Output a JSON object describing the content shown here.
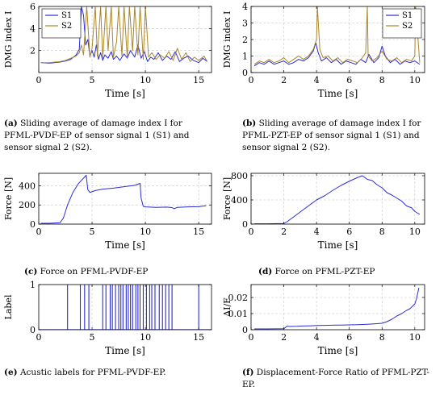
{
  "chart_data": [
    {
      "id": "a",
      "type": "line",
      "ylabel": "DMG index I",
      "xlabel": "Time [s]",
      "xlim": [
        0,
        16.2
      ],
      "ylim": [
        0,
        6
      ],
      "xticks": [
        0,
        5,
        10,
        15
      ],
      "yticks": [
        2,
        4,
        6
      ],
      "grid": true,
      "legend": "top-left",
      "series": [
        {
          "name": "S1",
          "color": "#2b2bd9",
          "x": [
            0.2,
            1.0,
            2.0,
            2.5,
            3.0,
            3.5,
            3.8,
            4.0,
            4.2,
            4.4,
            4.6,
            4.8,
            5.0,
            5.2,
            5.4,
            5.6,
            5.8,
            6.0,
            6.2,
            6.5,
            6.8,
            7.0,
            7.3,
            7.6,
            8.0,
            8.3,
            8.6,
            9.0,
            9.3,
            9.6,
            9.9,
            10.2,
            10.5,
            10.8,
            11.2,
            11.6,
            12.0,
            12.4,
            12.8,
            13.2,
            13.6,
            14.0,
            14.5,
            15.0,
            15.4,
            15.8
          ],
          "y": [
            0.9,
            0.85,
            0.95,
            1.05,
            1.2,
            1.6,
            2.1,
            6,
            5.2,
            2.5,
            3.0,
            1.5,
            2.0,
            1.4,
            2.5,
            1.2,
            1.8,
            1.1,
            1.6,
            1.3,
            1.9,
            1.2,
            1.5,
            1.1,
            1.7,
            1.3,
            2.0,
            1.4,
            2.5,
            1.3,
            1.9,
            1.0,
            1.4,
            1.2,
            1.8,
            1.1,
            1.5,
            1.2,
            1.9,
            1.0,
            1.3,
            1.5,
            1.1,
            0.9,
            1.3,
            1.0
          ]
        },
        {
          "name": "S2",
          "color": "#a8862b",
          "x": [
            0.2,
            1.0,
            2.0,
            2.5,
            3.0,
            3.5,
            3.8,
            4.0,
            4.2,
            4.5,
            4.8,
            5.0,
            5.3,
            5.5,
            5.8,
            6.0,
            6.3,
            6.5,
            6.8,
            7.0,
            7.3,
            7.5,
            7.8,
            8.0,
            8.3,
            8.5,
            8.8,
            9.0,
            9.3,
            9.5,
            9.8,
            10.0,
            10.3,
            10.6,
            11.0,
            11.4,
            11.8,
            12.2,
            12.6,
            13.0,
            13.4,
            13.8,
            14.2,
            14.6,
            15.0,
            15.5,
            15.8
          ],
          "y": [
            0.9,
            0.9,
            1.0,
            1.1,
            1.3,
            1.5,
            1.8,
            2.5,
            1.6,
            6,
            1.4,
            2.2,
            6,
            1.5,
            6,
            1.3,
            6,
            2.0,
            6,
            1.4,
            2.8,
            6,
            1.5,
            6,
            1.3,
            6,
            2.0,
            6,
            1.6,
            6,
            1.2,
            6,
            1.4,
            1.8,
            1.2,
            1.6,
            1.3,
            1.9,
            1.1,
            2.2,
            1.2,
            1.8,
            1.0,
            1.4,
            1.1,
            1.5,
            1.0
          ]
        }
      ]
    },
    {
      "id": "b",
      "type": "line",
      "ylabel": "DMG index I",
      "xlabel": "Time [s]",
      "xlim": [
        0,
        10.6
      ],
      "ylim": [
        0,
        4
      ],
      "xticks": [
        0,
        2,
        4,
        6,
        8,
        10
      ],
      "yticks": [
        0,
        1,
        2,
        3,
        4
      ],
      "grid": true,
      "legend": "top-right",
      "series": [
        {
          "name": "S1",
          "color": "#2b2bd9",
          "x": [
            0.2,
            0.5,
            0.8,
            1.1,
            1.4,
            1.7,
            2.0,
            2.3,
            2.6,
            2.9,
            3.2,
            3.5,
            3.8,
            3.95,
            4.1,
            4.3,
            4.6,
            4.9,
            5.2,
            5.5,
            5.8,
            6.1,
            6.4,
            6.7,
            7.0,
            7.2,
            7.5,
            7.8,
            8.0,
            8.2,
            8.5,
            8.8,
            9.1,
            9.4,
            9.7,
            10.0,
            10.3
          ],
          "y": [
            0.4,
            0.6,
            0.5,
            0.7,
            0.5,
            0.6,
            0.7,
            0.5,
            0.6,
            0.8,
            0.7,
            0.9,
            1.3,
            1.8,
            1.2,
            0.7,
            0.9,
            0.6,
            0.8,
            0.5,
            0.7,
            0.6,
            0.5,
            0.8,
            0.6,
            1.1,
            0.6,
            0.9,
            1.6,
            1.0,
            0.6,
            0.8,
            0.5,
            0.7,
            0.6,
            0.7,
            0.5
          ]
        },
        {
          "name": "S2",
          "color": "#a8862b",
          "x": [
            0.2,
            0.5,
            0.8,
            1.1,
            1.4,
            1.7,
            2.0,
            2.3,
            2.6,
            2.9,
            3.2,
            3.5,
            3.8,
            4.0,
            4.05,
            4.2,
            4.4,
            4.7,
            5.0,
            5.3,
            5.6,
            5.9,
            6.2,
            6.5,
            6.8,
            7.0,
            7.1,
            7.15,
            7.4,
            7.7,
            8.0,
            8.3,
            8.6,
            8.9,
            9.2,
            9.5,
            9.8,
            10.0,
            10.05,
            10.3
          ],
          "y": [
            0.5,
            0.7,
            0.6,
            0.8,
            0.6,
            0.7,
            0.9,
            0.6,
            0.8,
            1.0,
            0.8,
            1.0,
            1.4,
            2.0,
            4,
            1.4,
            0.9,
            1.0,
            0.7,
            0.9,
            0.6,
            0.8,
            0.7,
            0.6,
            0.9,
            1.2,
            4,
            1.0,
            0.7,
            0.9,
            1.3,
            0.8,
            0.7,
            0.9,
            0.6,
            0.8,
            0.7,
            1.0,
            4,
            0.6
          ]
        }
      ]
    },
    {
      "id": "c",
      "type": "line",
      "ylabel": "Force [N]",
      "xlabel": "Time [s]",
      "xlim": [
        0,
        16.2
      ],
      "ylim": [
        0,
        530
      ],
      "xticks": [
        0,
        5,
        10,
        15
      ],
      "yticks": [
        0,
        200,
        400
      ],
      "grid": true,
      "series": [
        {
          "name": "",
          "color": "#2b2bd9",
          "x": [
            0.2,
            1.0,
            2.0,
            2.3,
            2.7,
            3.2,
            3.7,
            4.2,
            4.45,
            4.6,
            4.8,
            5.3,
            6.0,
            7.0,
            8.0,
            9.0,
            9.5,
            9.6,
            9.8,
            10.0,
            11.0,
            12.0,
            12.5,
            12.7,
            13.0,
            14.0,
            15.0,
            15.7
          ],
          "y": [
            8,
            8,
            15,
            60,
            200,
            330,
            420,
            480,
            510,
            360,
            330,
            350,
            365,
            375,
            390,
            405,
            425,
            270,
            185,
            180,
            175,
            178,
            172,
            160,
            175,
            180,
            182,
            192
          ]
        }
      ]
    },
    {
      "id": "d",
      "type": "line",
      "ylabel": "Force [N]",
      "xlabel": "Time [s]",
      "xlim": [
        0,
        10.6
      ],
      "ylim": [
        0,
        840
      ],
      "xticks": [
        0,
        2,
        4,
        6,
        8,
        10
      ],
      "yticks": [
        0,
        400,
        800
      ],
      "grid": true,
      "series": [
        {
          "name": "",
          "color": "#2b2bd9",
          "x": [
            0.2,
            1.0,
            2.0,
            2.2,
            2.6,
            3.0,
            3.5,
            4.0,
            4.5,
            5.0,
            5.5,
            6.0,
            6.5,
            6.8,
            7.1,
            7.4,
            7.7,
            8.0,
            8.3,
            8.6,
            8.9,
            9.2,
            9.5,
            9.8,
            10.0,
            10.3
          ],
          "y": [
            5,
            5,
            10,
            40,
            120,
            200,
            300,
            400,
            470,
            560,
            640,
            710,
            770,
            800,
            740,
            720,
            650,
            600,
            520,
            480,
            430,
            380,
            300,
            270,
            210,
            160
          ]
        }
      ]
    },
    {
      "id": "e",
      "type": "line",
      "ylabel": "Label",
      "xlabel": "Time [s]",
      "xlim": [
        0,
        16.2
      ],
      "ylim": [
        0,
        1
      ],
      "xticks": [
        0,
        5,
        10,
        15
      ],
      "yticks": [
        0,
        1
      ],
      "grid": true,
      "series": [
        {
          "name": "",
          "color": "#2b2bd9",
          "spikes": [
            2.7,
            3.9,
            4.3,
            4.7,
            6.0,
            6.3,
            6.7,
            6.9,
            7.2,
            7.5,
            7.7,
            7.9,
            8.2,
            8.4,
            8.6,
            8.8,
            9.1,
            9.3,
            9.5,
            9.8,
            10.1,
            10.4,
            10.6,
            10.9,
            11.3,
            11.6,
            11.9,
            12.2,
            12.5,
            15.0
          ]
        }
      ]
    },
    {
      "id": "f",
      "type": "line",
      "ylabel": "ΔI/F",
      "xlabel": "Time [s]",
      "xlim": [
        0,
        10.6
      ],
      "ylim": [
        0,
        0.028
      ],
      "xticks": [
        0,
        2,
        4,
        6,
        8,
        10
      ],
      "yticks": [
        0,
        0.01,
        0.02
      ],
      "grid": true,
      "series": [
        {
          "name": "",
          "color": "#2b2bd9",
          "x": [
            0.2,
            1.0,
            2.0,
            2.2,
            2.4,
            2.8,
            3.2,
            3.6,
            4.0,
            4.5,
            5.0,
            5.5,
            6.0,
            6.5,
            7.0,
            7.5,
            8.0,
            8.3,
            8.6,
            8.9,
            9.2,
            9.5,
            9.7,
            9.9,
            10.0,
            10.1,
            10.25
          ],
          "y": [
            0.0005,
            0.0005,
            0.0006,
            0.0022,
            0.002,
            0.0021,
            0.0023,
            0.0024,
            0.0026,
            0.0027,
            0.0028,
            0.0029,
            0.003,
            0.0031,
            0.0033,
            0.0036,
            0.004,
            0.005,
            0.0065,
            0.0085,
            0.01,
            0.012,
            0.013,
            0.015,
            0.016,
            0.019,
            0.026
          ]
        }
      ]
    }
  ],
  "captions": {
    "a": {
      "tag": "(a)",
      "text": " Sliding average of damage index I for PFML-PVDF-EP of sensor signal 1 (S1) and sensor signal 2 (S2)."
    },
    "b": {
      "tag": "(b)",
      "text": " Sliding average of damage index I for PFML-PZT-EP of sensor signal 1 (S1) and sensor signal 2 (S2)."
    },
    "c": {
      "tag": "(c)",
      "text": " Force on PFML-PVDF-EP"
    },
    "d": {
      "tag": "(d)",
      "text": " Force on PFML-PZT-EP"
    },
    "e": {
      "tag": "(e)",
      "text": " Acustic labels for PFML-PVDF-EP."
    },
    "f": {
      "tag": "(f)",
      "text": " Displacement-Force Ratio of PFML-PZT-EP."
    }
  }
}
